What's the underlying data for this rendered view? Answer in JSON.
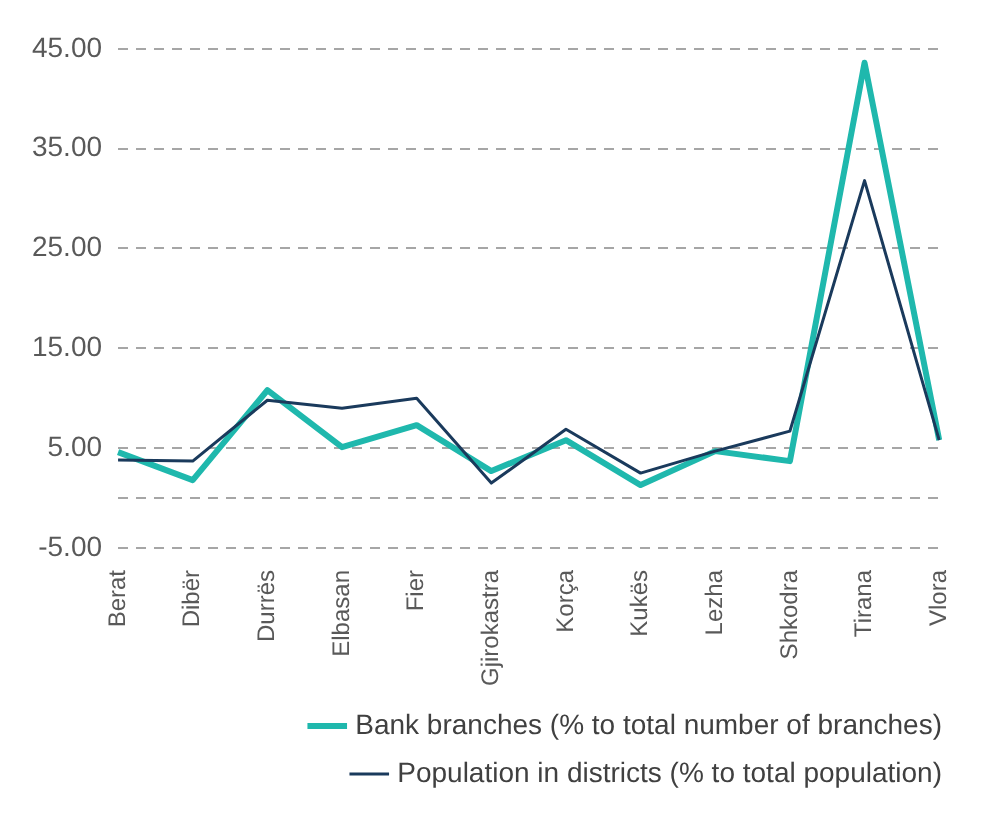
{
  "chart_data": {
    "type": "line",
    "categories": [
      "Berat",
      "Dibër",
      "Durrës",
      "Elbasan",
      "Fier",
      "Gjirokastra",
      "Korça",
      "Kukës",
      "Lezha",
      "Shkodra",
      "Tirana",
      "Vlora"
    ],
    "series": [
      {
        "name": "Bank branches (% to total number of branches)",
        "color": "#1fb8ad",
        "values": [
          4.6,
          1.8,
          10.8,
          5.1,
          7.3,
          2.7,
          5.8,
          1.3,
          4.7,
          3.7,
          43.6,
          5.8
        ]
      },
      {
        "name": "Population in districts (% to total population)",
        "color": "#1a3a5c",
        "values": [
          3.8,
          3.7,
          9.8,
          9.0,
          10.0,
          1.5,
          6.9,
          2.5,
          4.7,
          6.7,
          31.8,
          5.8
        ]
      }
    ],
    "ylim": [
      -5,
      45
    ],
    "yticks": [
      {
        "value": -5,
        "label": "-5.00"
      },
      {
        "value": 0,
        "label": null
      },
      {
        "value": 5,
        "label": "5.00"
      },
      {
        "value": 15,
        "label": "15.00"
      },
      {
        "value": 25,
        "label": "25.00"
      },
      {
        "value": 35,
        "label": "35.00"
      },
      {
        "value": 45,
        "label": "45.00"
      }
    ],
    "grid": "y",
    "legend": "bottom",
    "marker": "none",
    "line_style": "solid"
  }
}
